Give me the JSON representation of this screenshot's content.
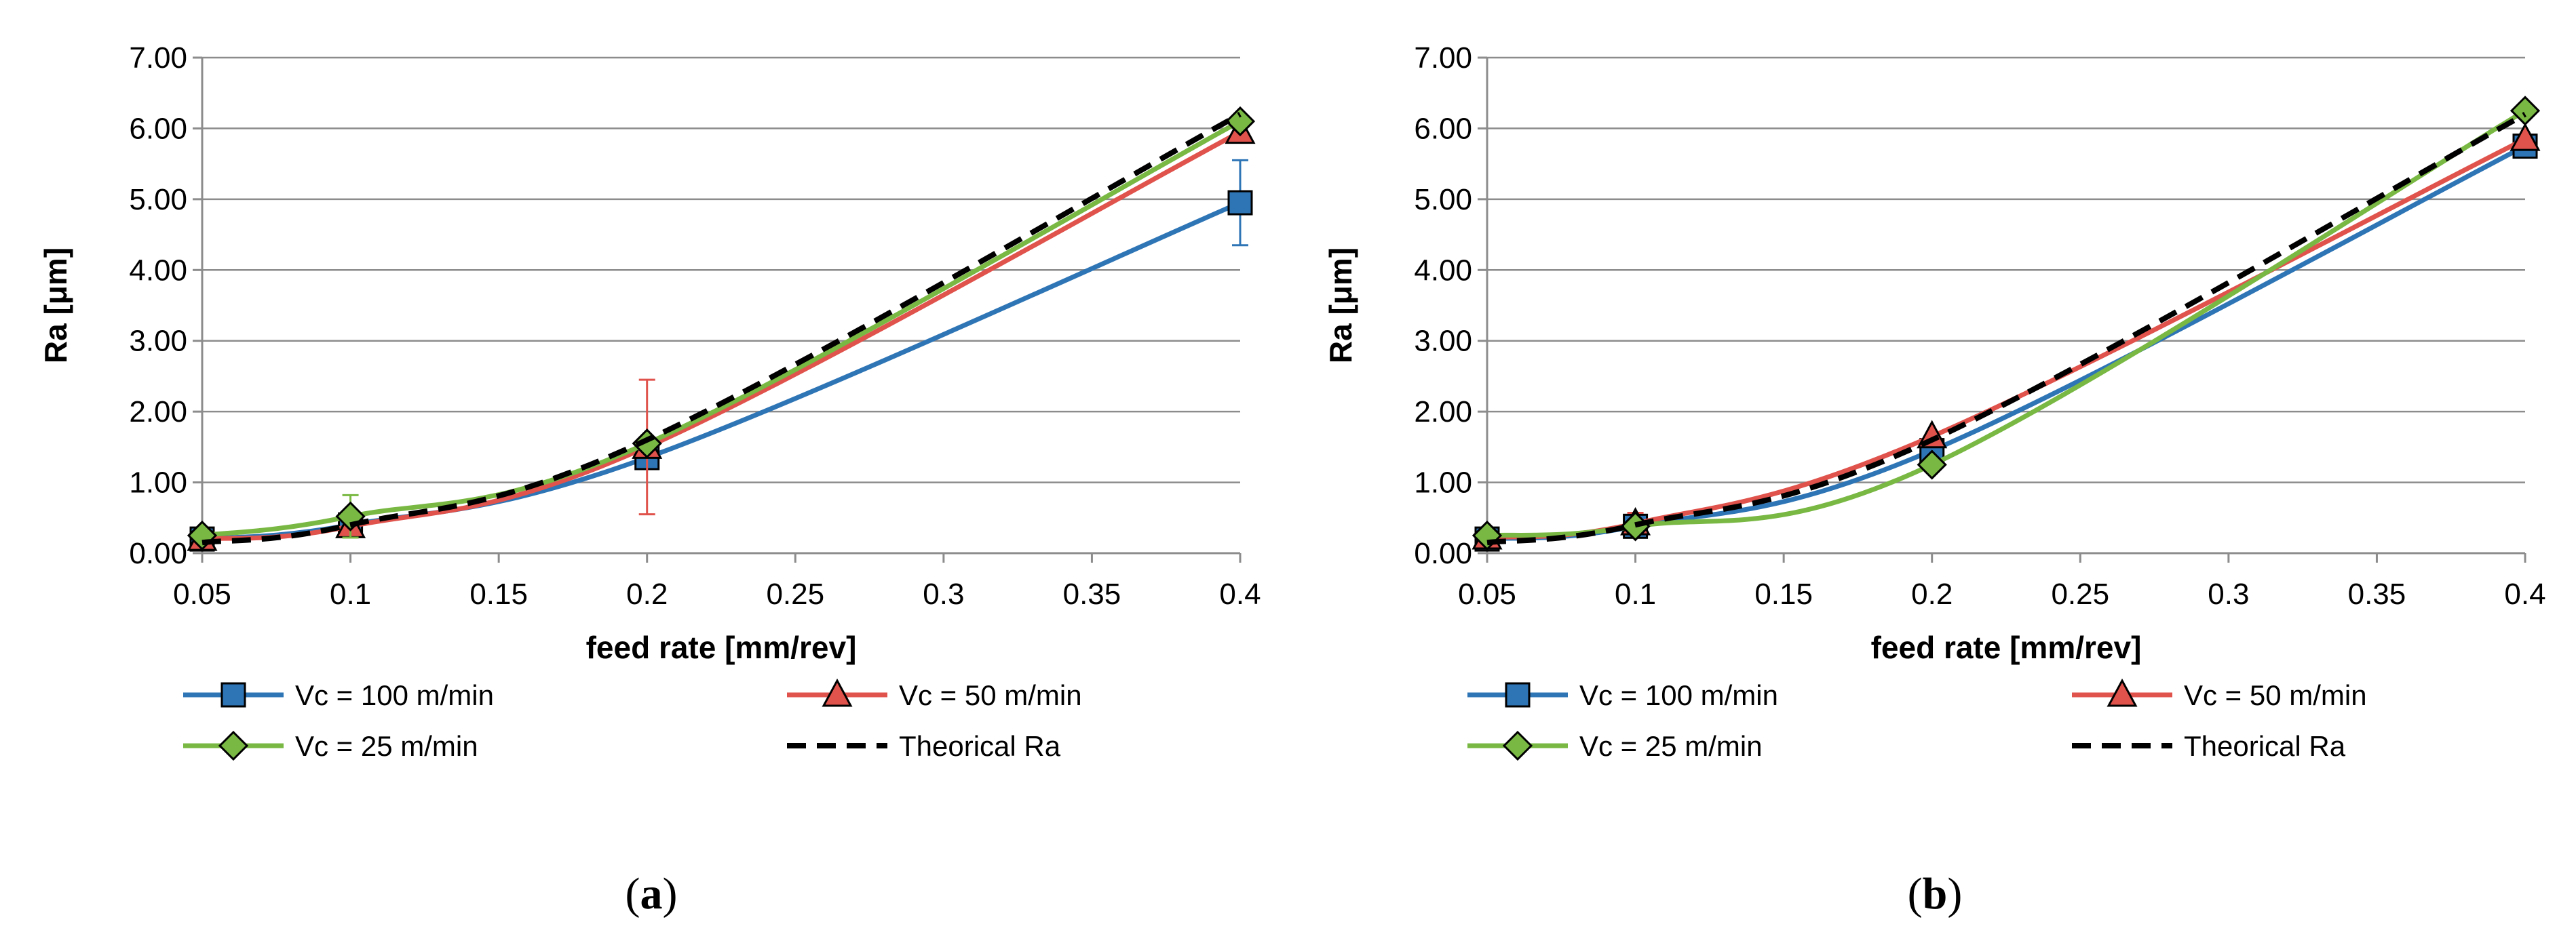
{
  "chart_data": [
    {
      "type": "line",
      "panel_label": "(a)",
      "panel_letter": "a",
      "xlabel": "feed rate [mm/rev]",
      "ylabel": "Ra [μm]",
      "xlim": [
        0.05,
        0.4
      ],
      "ylim": [
        0,
        7
      ],
      "xticks": [
        "0.05",
        "0.1",
        "0.15",
        "0.2",
        "0.25",
        "0.3",
        "0.35",
        "0.4"
      ],
      "yticks": [
        "0.00",
        "1.00",
        "2.00",
        "3.00",
        "4.00",
        "5.00",
        "6.00",
        "7.00"
      ],
      "grid": "horizontal",
      "legend_position": "bottom",
      "series": [
        {
          "name": "Vc = 100 m/min",
          "color": "#2E75B6",
          "marker": "square",
          "x": [
            0.05,
            0.1,
            0.2,
            0.4
          ],
          "y": [
            0.2,
            0.4,
            1.35,
            4.95
          ],
          "error_bar": [
            null,
            null,
            null,
            0.6
          ]
        },
        {
          "name": "Vc = 50 m/min",
          "color": "#E0524C",
          "marker": "triangle",
          "x": [
            0.05,
            0.1,
            0.2,
            0.4
          ],
          "y": [
            0.2,
            0.38,
            1.5,
            5.95
          ],
          "error_bar": [
            null,
            null,
            0.95,
            null
          ]
        },
        {
          "name": "Vc = 25 m/min",
          "color": "#78B843",
          "marker": "diamond",
          "x": [
            0.05,
            0.1,
            0.2,
            0.4
          ],
          "y": [
            0.25,
            0.52,
            1.55,
            6.1
          ],
          "error_bar": [
            null,
            0.3,
            null,
            null
          ]
        },
        {
          "name": "Theorical Ra",
          "color": "#000000",
          "marker": "none",
          "dashed": true,
          "x": [
            0.05,
            0.1,
            0.2,
            0.4
          ],
          "y": [
            0.15,
            0.4,
            1.6,
            6.2
          ]
        }
      ]
    },
    {
      "type": "line",
      "panel_label": "(b)",
      "panel_letter": "b",
      "xlabel": "feed rate [mm/rev]",
      "ylabel": "Ra [μm]",
      "xlim": [
        0.05,
        0.4
      ],
      "ylim": [
        0,
        7
      ],
      "xticks": [
        "0.05",
        "0.1",
        "0.15",
        "0.2",
        "0.25",
        "0.3",
        "0.35",
        "0.4"
      ],
      "yticks": [
        "0.00",
        "1.00",
        "2.00",
        "3.00",
        "4.00",
        "5.00",
        "6.00",
        "7.00"
      ],
      "grid": "horizontal",
      "legend_position": "bottom",
      "series": [
        {
          "name": "Vc = 100 m/min",
          "color": "#2E75B6",
          "marker": "square",
          "x": [
            0.05,
            0.1,
            0.2,
            0.4
          ],
          "y": [
            0.2,
            0.38,
            1.45,
            5.75
          ]
        },
        {
          "name": "Vc = 50 m/min",
          "color": "#E0524C",
          "marker": "triangle",
          "x": [
            0.05,
            0.1,
            0.2,
            0.4
          ],
          "y": [
            0.22,
            0.42,
            1.65,
            5.85
          ],
          "error_bar": [
            null,
            0.15,
            null,
            null
          ]
        },
        {
          "name": "Vc = 25 m/min",
          "color": "#78B843",
          "marker": "diamond",
          "x": [
            0.05,
            0.1,
            0.2,
            0.4
          ],
          "y": [
            0.25,
            0.38,
            1.25,
            6.25
          ]
        },
        {
          "name": "Theorical Ra",
          "color": "#000000",
          "marker": "none",
          "dashed": true,
          "x": [
            0.05,
            0.1,
            0.2,
            0.4
          ],
          "y": [
            0.15,
            0.4,
            1.6,
            6.2
          ]
        }
      ]
    }
  ]
}
